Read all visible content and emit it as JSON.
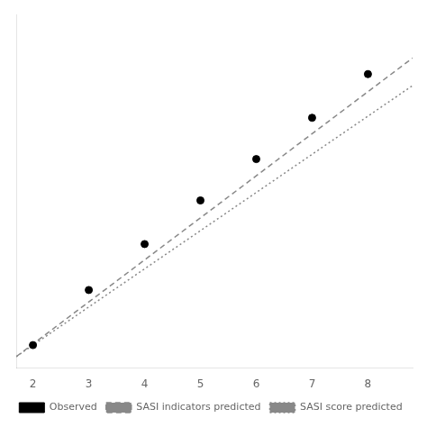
{
  "chart_data": {
    "type": "line",
    "series": [
      {
        "name": "SASI indicators predicted",
        "type": "line",
        "color": "#888888",
        "line_style": "dashed",
        "x": [
          1.7,
          8.8
        ],
        "values": [
          0.005,
          0.655
        ]
      },
      {
        "name": "SASI score predicted",
        "type": "line",
        "color": "#888888",
        "line_style": "dotted",
        "x": [
          1.7,
          8.8
        ],
        "values": [
          0.005,
          0.595
        ]
      },
      {
        "name": "Observed",
        "type": "scatter",
        "color": "#000000",
        "marker": "circle",
        "x": [
          2.0,
          3.0,
          4.0,
          5.0,
          6.0,
          7.0,
          8.0
        ],
        "values": [
          0.03,
          0.15,
          0.25,
          0.345,
          0.435,
          0.525,
          0.62
        ]
      }
    ],
    "xlim": [
      1.7,
      8.8
    ],
    "xticks": [
      2,
      3,
      4,
      5,
      6,
      7,
      8
    ],
    "ylim": [
      -0.02,
      0.75
    ],
    "tick_labels": "x",
    "legend": "bottom",
    "grid": false
  }
}
